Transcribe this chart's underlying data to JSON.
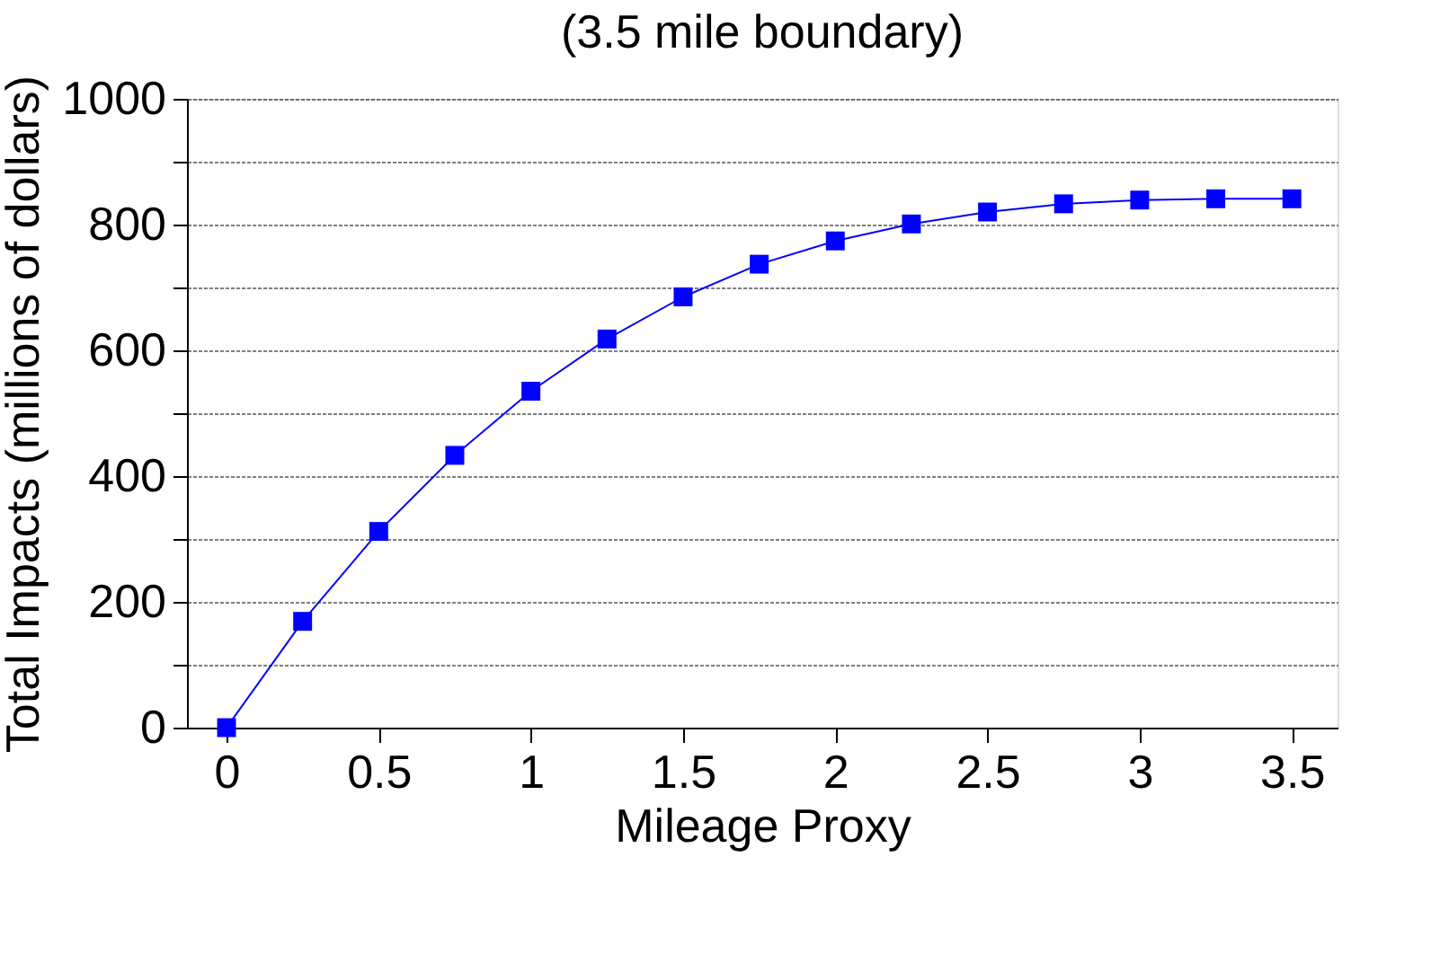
{
  "chart_data": {
    "type": "line",
    "title": "(3.5 mile boundary)",
    "xlabel": "Mileage Proxy",
    "ylabel": "Total Impacts (millions of dollars)",
    "x": [
      0,
      0.25,
      0.5,
      0.75,
      1,
      1.25,
      1.5,
      1.75,
      2,
      2.25,
      2.5,
      2.75,
      3,
      3.25,
      3.5
    ],
    "series": [
      {
        "color": "#0000ff",
        "values": [
          0,
          169,
          312,
          433,
          535,
          618,
          685,
          737,
          774,
          801,
          820,
          833,
          839,
          841,
          841
        ]
      }
    ],
    "xlim": [
      -0.13,
      3.65
    ],
    "xticks": [
      0,
      0.5,
      1,
      1.5,
      2,
      2.5,
      3,
      3.5
    ],
    "ylim": [
      0,
      1000
    ],
    "yticks": [
      0,
      {
        "value": 100,
        "label": null
      },
      200,
      {
        "value": 300,
        "label": null
      },
      400,
      {
        "value": 500,
        "label": null
      },
      600,
      {
        "value": 700,
        "label": null
      },
      800,
      {
        "value": 900,
        "label": null
      },
      1000
    ],
    "grid": "y",
    "marker": "square",
    "line_style": "solid"
  }
}
